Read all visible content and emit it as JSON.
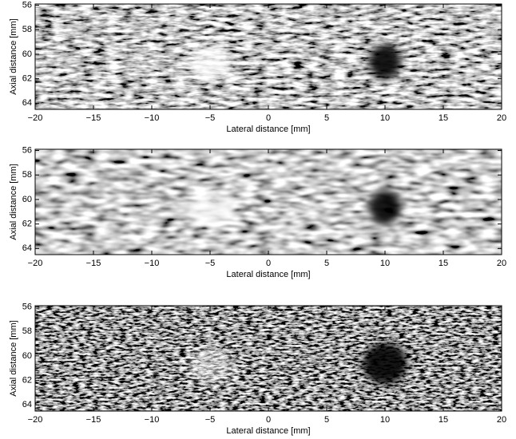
{
  "chart_data": [
    {
      "type": "image",
      "xlabel": "Lateral distance [mm]",
      "ylabel": "Axial distance [mm]",
      "xlim": [
        -20,
        20
      ],
      "ylim": [
        55.9,
        64.5
      ],
      "y_inverted": true,
      "xticks": [
        {
          "value": -20,
          "label": "−20"
        },
        {
          "value": -15,
          "label": "−15"
        },
        {
          "value": -10,
          "label": "−10"
        },
        {
          "value": -5,
          "label": "−5"
        },
        0,
        5,
        10,
        15,
        20
      ],
      "yticks": [
        56,
        58,
        60,
        62,
        64
      ],
      "colormap": "gray"
    },
    {
      "type": "image",
      "xlabel": "Lateral distance [mm]",
      "ylabel": "Axial distance [mm]",
      "xlim": [
        -20,
        20
      ],
      "ylim": [
        55.9,
        64.5
      ],
      "y_inverted": true,
      "xticks": [
        {
          "value": -20,
          "label": "−20"
        },
        {
          "value": -15,
          "label": "−15"
        },
        {
          "value": -10,
          "label": "−10"
        },
        {
          "value": -5,
          "label": "−5"
        },
        0,
        5,
        10,
        15,
        20
      ],
      "yticks": [
        56,
        58,
        60,
        62,
        64
      ],
      "colormap": "gray"
    },
    {
      "type": "image",
      "xlabel": "Lateral distance [mm]",
      "ylabel": "Axial distance [mm]",
      "xlim": [
        -20,
        20
      ],
      "ylim": [
        55.9,
        64.5
      ],
      "y_inverted": true,
      "xticks": [
        {
          "value": -20,
          "label": "−20"
        },
        {
          "value": -15,
          "label": "−15"
        },
        {
          "value": -10,
          "label": "−10"
        },
        {
          "value": -5,
          "label": "−5"
        },
        0,
        5,
        10,
        15,
        20
      ],
      "yticks": [
        56,
        58,
        60,
        62,
        64
      ],
      "colormap": "gray"
    }
  ]
}
